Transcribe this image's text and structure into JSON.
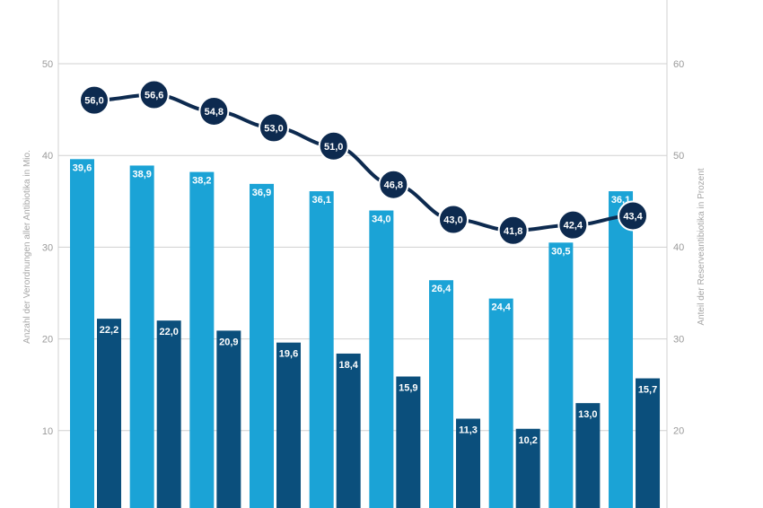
{
  "chart_data": {
    "type": "bar",
    "title": "",
    "categories": [
      "",
      "",
      "",
      "",
      "",
      "",
      "",
      "",
      "",
      ""
    ],
    "series": [
      {
        "values": [
          39.6,
          38.9,
          38.2,
          36.9,
          36.1,
          34.0,
          26.4,
          24.4,
          30.5,
          36.1
        ]
      },
      {
        "values": [
          22.2,
          22.0,
          20.9,
          19.6,
          18.4,
          15.9,
          11.3,
          10.2,
          13.0,
          15.7
        ]
      },
      {
        "type": "line",
        "axis": "right",
        "values": [
          56.0,
          56.6,
          54.8,
          53.0,
          51.0,
          46.8,
          43.0,
          41.8,
          42.4,
          43.4
        ]
      }
    ],
    "ylabel": "Anzahl der Verordnungen aller Antibiotika in Mio.",
    "y2label": "Anteil der Reserveantibiotika in Prozent",
    "left_ticks": [
      "10",
      "20",
      "30",
      "40",
      "50"
    ],
    "right_ticks": [
      "20",
      "30",
      "40",
      "50",
      "60"
    ],
    "left_axis_visible_range": [
      0,
      55
    ],
    "right_axis_visible_range": [
      10,
      65
    ],
    "grid": true,
    "legend": "none",
    "colors": {
      "bar_light": "#1ba3d6",
      "bar_dark": "#0b4f7c",
      "line": "#0d2a4f",
      "marker": "#0d2a4f",
      "grid": "#d0d0d0"
    }
  }
}
